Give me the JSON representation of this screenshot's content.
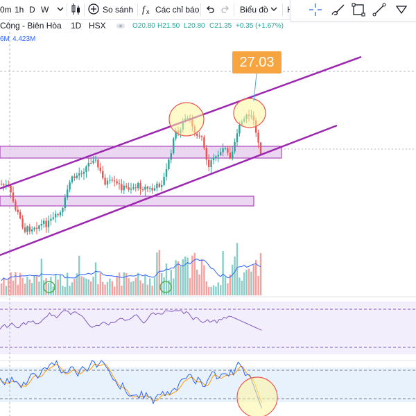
{
  "toolbar": {
    "interval_partial": "0m",
    "interval_1h": "1h",
    "interval_D": "D",
    "interval_W": "W",
    "compare_label": "So sánh",
    "indicators_label": "Các chỉ báo",
    "chart_type_label": "Biểu đồ",
    "partial_right": "H"
  },
  "legend": {
    "symbol": "Công - Biên Hòa",
    "interval": "1D",
    "exchange": "HSX",
    "open": "O20.80",
    "high": "H21.50",
    "low": "L20.80",
    "close": "C21.35",
    "change": "+0.35 (+1.67%)",
    "volume_partial": "6M",
    "volume_ma": "4.423M"
  },
  "annotation": {
    "price_label": "27.03"
  },
  "colors": {
    "up": "#26a69a",
    "down": "#ef5350",
    "channel": "#9c27b0",
    "zone_fill": "#e1bee7",
    "highlight_fill": "#fff59d",
    "highlight_stroke": "#ef5350",
    "label_bg": "#f7a541",
    "ma_line": "#2962ff",
    "rsi_band": "#ede7f6",
    "stoch_band": "#e3f2fd",
    "stoch_k": "#2962ff",
    "stoch_d": "#ff9800"
  },
  "icons": [
    "crosshair-icon",
    "brush-icon",
    "rectangle-icon",
    "trendline-icon",
    "chevron-down-icon",
    "undo-icon",
    "redo-icon",
    "plus-circle-icon",
    "fx-icon",
    "candles-icon"
  ]
}
